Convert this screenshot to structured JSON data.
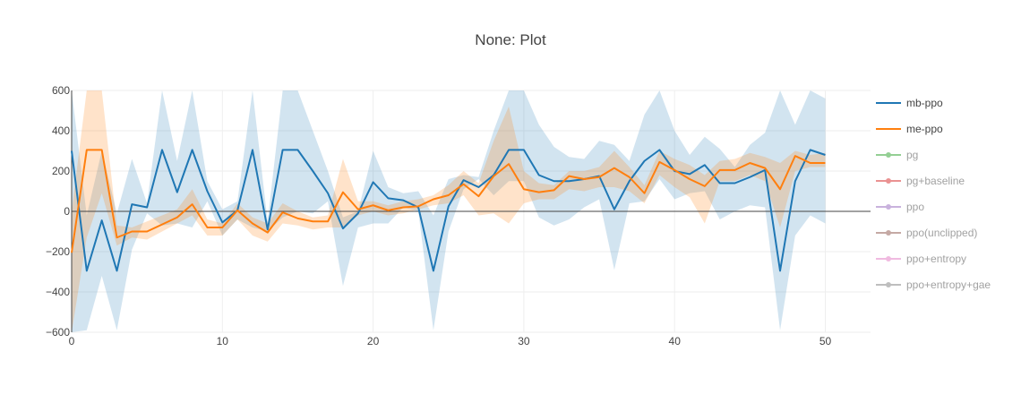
{
  "chart_data": {
    "type": "line",
    "title": "None: Plot",
    "xlabel": "",
    "ylabel": "",
    "xlim": [
      0,
      53
    ],
    "ylim": [
      -600,
      600
    ],
    "x_ticks": [
      0,
      10,
      20,
      30,
      40,
      50
    ],
    "y_ticks": [
      -600,
      -400,
      -200,
      0,
      200,
      400,
      600
    ],
    "y_tick_labels": [
      "−600",
      "−400",
      "−200",
      "0",
      "200",
      "400",
      "600"
    ],
    "grid": true,
    "zero_line": true,
    "legend_position": "right",
    "series": [
      {
        "name": "mb-ppo",
        "color": "#1f77b4",
        "visible": true,
        "x": [
          0,
          1,
          2,
          3,
          4,
          5,
          6,
          7,
          8,
          9,
          10,
          11,
          12,
          13,
          14,
          15,
          16,
          17,
          18,
          19,
          20,
          21,
          22,
          23,
          24,
          25,
          26,
          27,
          28,
          29,
          30,
          31,
          32,
          33,
          34,
          35,
          36,
          37,
          38,
          39,
          40,
          41,
          42,
          43,
          44,
          45,
          46,
          47,
          48,
          49,
          50
        ],
        "y": [
          300,
          -295,
          -45,
          -295,
          35,
          20,
          305,
          95,
          305,
          100,
          -55,
          5,
          305,
          -90,
          305,
          305,
          200,
          90,
          -85,
          -10,
          145,
          65,
          55,
          20,
          -295,
          25,
          155,
          120,
          180,
          305,
          305,
          180,
          150,
          150,
          160,
          175,
          10,
          150,
          250,
          305,
          200,
          185,
          230,
          140,
          140,
          170,
          205,
          -295,
          150,
          305,
          280
        ],
        "upper": [
          600,
          -20,
          300,
          -10,
          260,
          40,
          600,
          250,
          600,
          150,
          10,
          50,
          600,
          -50,
          600,
          600,
          400,
          200,
          -30,
          0,
          300,
          120,
          90,
          100,
          -20,
          160,
          180,
          170,
          400,
          600,
          600,
          430,
          320,
          270,
          260,
          350,
          330,
          250,
          480,
          600,
          400,
          280,
          370,
          310,
          220,
          330,
          390,
          600,
          430,
          600,
          560
        ],
        "lower": [
          -600,
          -590,
          -320,
          -590,
          -190,
          -10,
          -70,
          -60,
          -80,
          50,
          -120,
          -40,
          -80,
          -100,
          -30,
          0,
          -10,
          50,
          -370,
          -80,
          -60,
          -60,
          20,
          0,
          -590,
          -100,
          110,
          160,
          80,
          150,
          150,
          -30,
          -70,
          -40,
          20,
          60,
          -290,
          40,
          50,
          160,
          60,
          90,
          100,
          -40,
          0,
          30,
          20,
          -590,
          -120,
          -20,
          -60
        ]
      },
      {
        "name": "me-ppo",
        "color": "#ff7f0e",
        "visible": true,
        "x": [
          0,
          1,
          2,
          3,
          4,
          5,
          6,
          7,
          8,
          9,
          10,
          11,
          12,
          13,
          14,
          15,
          16,
          17,
          18,
          19,
          20,
          21,
          22,
          23,
          24,
          25,
          26,
          27,
          28,
          29,
          30,
          31,
          32,
          33,
          34,
          35,
          36,
          37,
          38,
          39,
          40,
          41,
          42,
          43,
          44,
          45,
          46,
          47,
          48,
          49,
          50
        ],
        "y": [
          -205,
          305,
          305,
          -130,
          -100,
          -100,
          -65,
          -30,
          35,
          -80,
          -80,
          5,
          -60,
          -105,
          -5,
          -35,
          -50,
          -50,
          95,
          10,
          30,
          5,
          20,
          25,
          60,
          80,
          135,
          75,
          175,
          235,
          110,
          95,
          105,
          175,
          160,
          170,
          215,
          170,
          90,
          245,
          205,
          160,
          125,
          205,
          205,
          240,
          215,
          110,
          275,
          240,
          240
        ],
        "upper": [
          0,
          600,
          600,
          -70,
          -80,
          -50,
          -20,
          10,
          110,
          -40,
          -60,
          40,
          -30,
          -60,
          40,
          0,
          -30,
          -20,
          260,
          50,
          50,
          30,
          50,
          60,
          80,
          130,
          200,
          140,
          350,
          520,
          200,
          140,
          130,
          200,
          200,
          220,
          300,
          220,
          130,
          300,
          260,
          230,
          180,
          250,
          260,
          290,
          270,
          240,
          300,
          280,
          290
        ],
        "lower": [
          -600,
          -130,
          90,
          -170,
          -130,
          -140,
          -100,
          -60,
          -20,
          -120,
          -120,
          -40,
          -120,
          -150,
          -60,
          -70,
          -90,
          -80,
          -80,
          -20,
          0,
          -20,
          -10,
          10,
          30,
          40,
          80,
          -20,
          -10,
          -60,
          40,
          60,
          60,
          110,
          100,
          120,
          120,
          100,
          40,
          180,
          120,
          70,
          -60,
          150,
          150,
          180,
          150,
          -80,
          200,
          220,
          220
        ]
      },
      {
        "name": "pg",
        "color": "#2ca02c",
        "visible": false
      },
      {
        "name": "pg+baseline",
        "color": "#d62728",
        "visible": false
      },
      {
        "name": "ppo",
        "color": "#9467bd",
        "visible": false
      },
      {
        "name": "ppo(unclipped)",
        "color": "#8c564b",
        "visible": false
      },
      {
        "name": "ppo+entropy",
        "color": "#e377c2",
        "visible": false
      },
      {
        "name": "ppo+entropy+gae",
        "color": "#7f7f7f",
        "visible": false
      }
    ]
  }
}
